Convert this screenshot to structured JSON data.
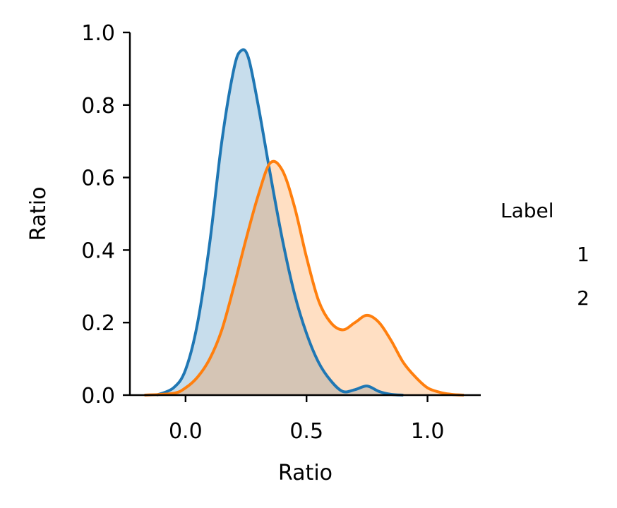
{
  "chart_data": {
    "type": "area",
    "xlabel": "Ratio",
    "ylabel": "Ratio",
    "xlim": [
      -0.23,
      1.22
    ],
    "ylim": [
      0,
      1.0
    ],
    "xticks": [
      0.0,
      0.5,
      1.0
    ],
    "xtick_labels": [
      "0.0",
      "0.5",
      "1.0"
    ],
    "yticks": [
      0.0,
      0.2,
      0.4,
      0.6,
      0.8,
      1.0
    ],
    "ytick_labels": [
      "0.0",
      "0.2",
      "0.4",
      "0.6",
      "0.8",
      "1.0"
    ],
    "grid": false,
    "legend_title": "Label",
    "legend_placement": "right",
    "series": [
      {
        "name": "1",
        "color": "#1f77b4",
        "x": [
          -0.12,
          -0.05,
          0.0,
          0.05,
          0.1,
          0.15,
          0.2,
          0.23,
          0.26,
          0.3,
          0.35,
          0.4,
          0.45,
          0.5,
          0.55,
          0.6,
          0.65,
          0.7,
          0.75,
          0.8,
          0.85,
          0.9
        ],
        "y": [
          0.0,
          0.02,
          0.07,
          0.2,
          0.42,
          0.7,
          0.9,
          0.95,
          0.93,
          0.8,
          0.61,
          0.43,
          0.28,
          0.17,
          0.09,
          0.04,
          0.01,
          0.015,
          0.025,
          0.01,
          0.002,
          0.0
        ]
      },
      {
        "name": "2",
        "color": "#ff7f0e",
        "x": [
          -0.17,
          -0.05,
          0.0,
          0.05,
          0.1,
          0.15,
          0.2,
          0.25,
          0.3,
          0.35,
          0.4,
          0.45,
          0.5,
          0.55,
          0.6,
          0.65,
          0.7,
          0.75,
          0.8,
          0.85,
          0.9,
          0.95,
          1.0,
          1.05,
          1.1,
          1.15
        ],
        "y": [
          0.0,
          0.005,
          0.02,
          0.05,
          0.1,
          0.18,
          0.3,
          0.43,
          0.55,
          0.64,
          0.62,
          0.52,
          0.38,
          0.26,
          0.2,
          0.18,
          0.2,
          0.22,
          0.2,
          0.15,
          0.09,
          0.05,
          0.02,
          0.008,
          0.002,
          0.0
        ]
      }
    ]
  }
}
